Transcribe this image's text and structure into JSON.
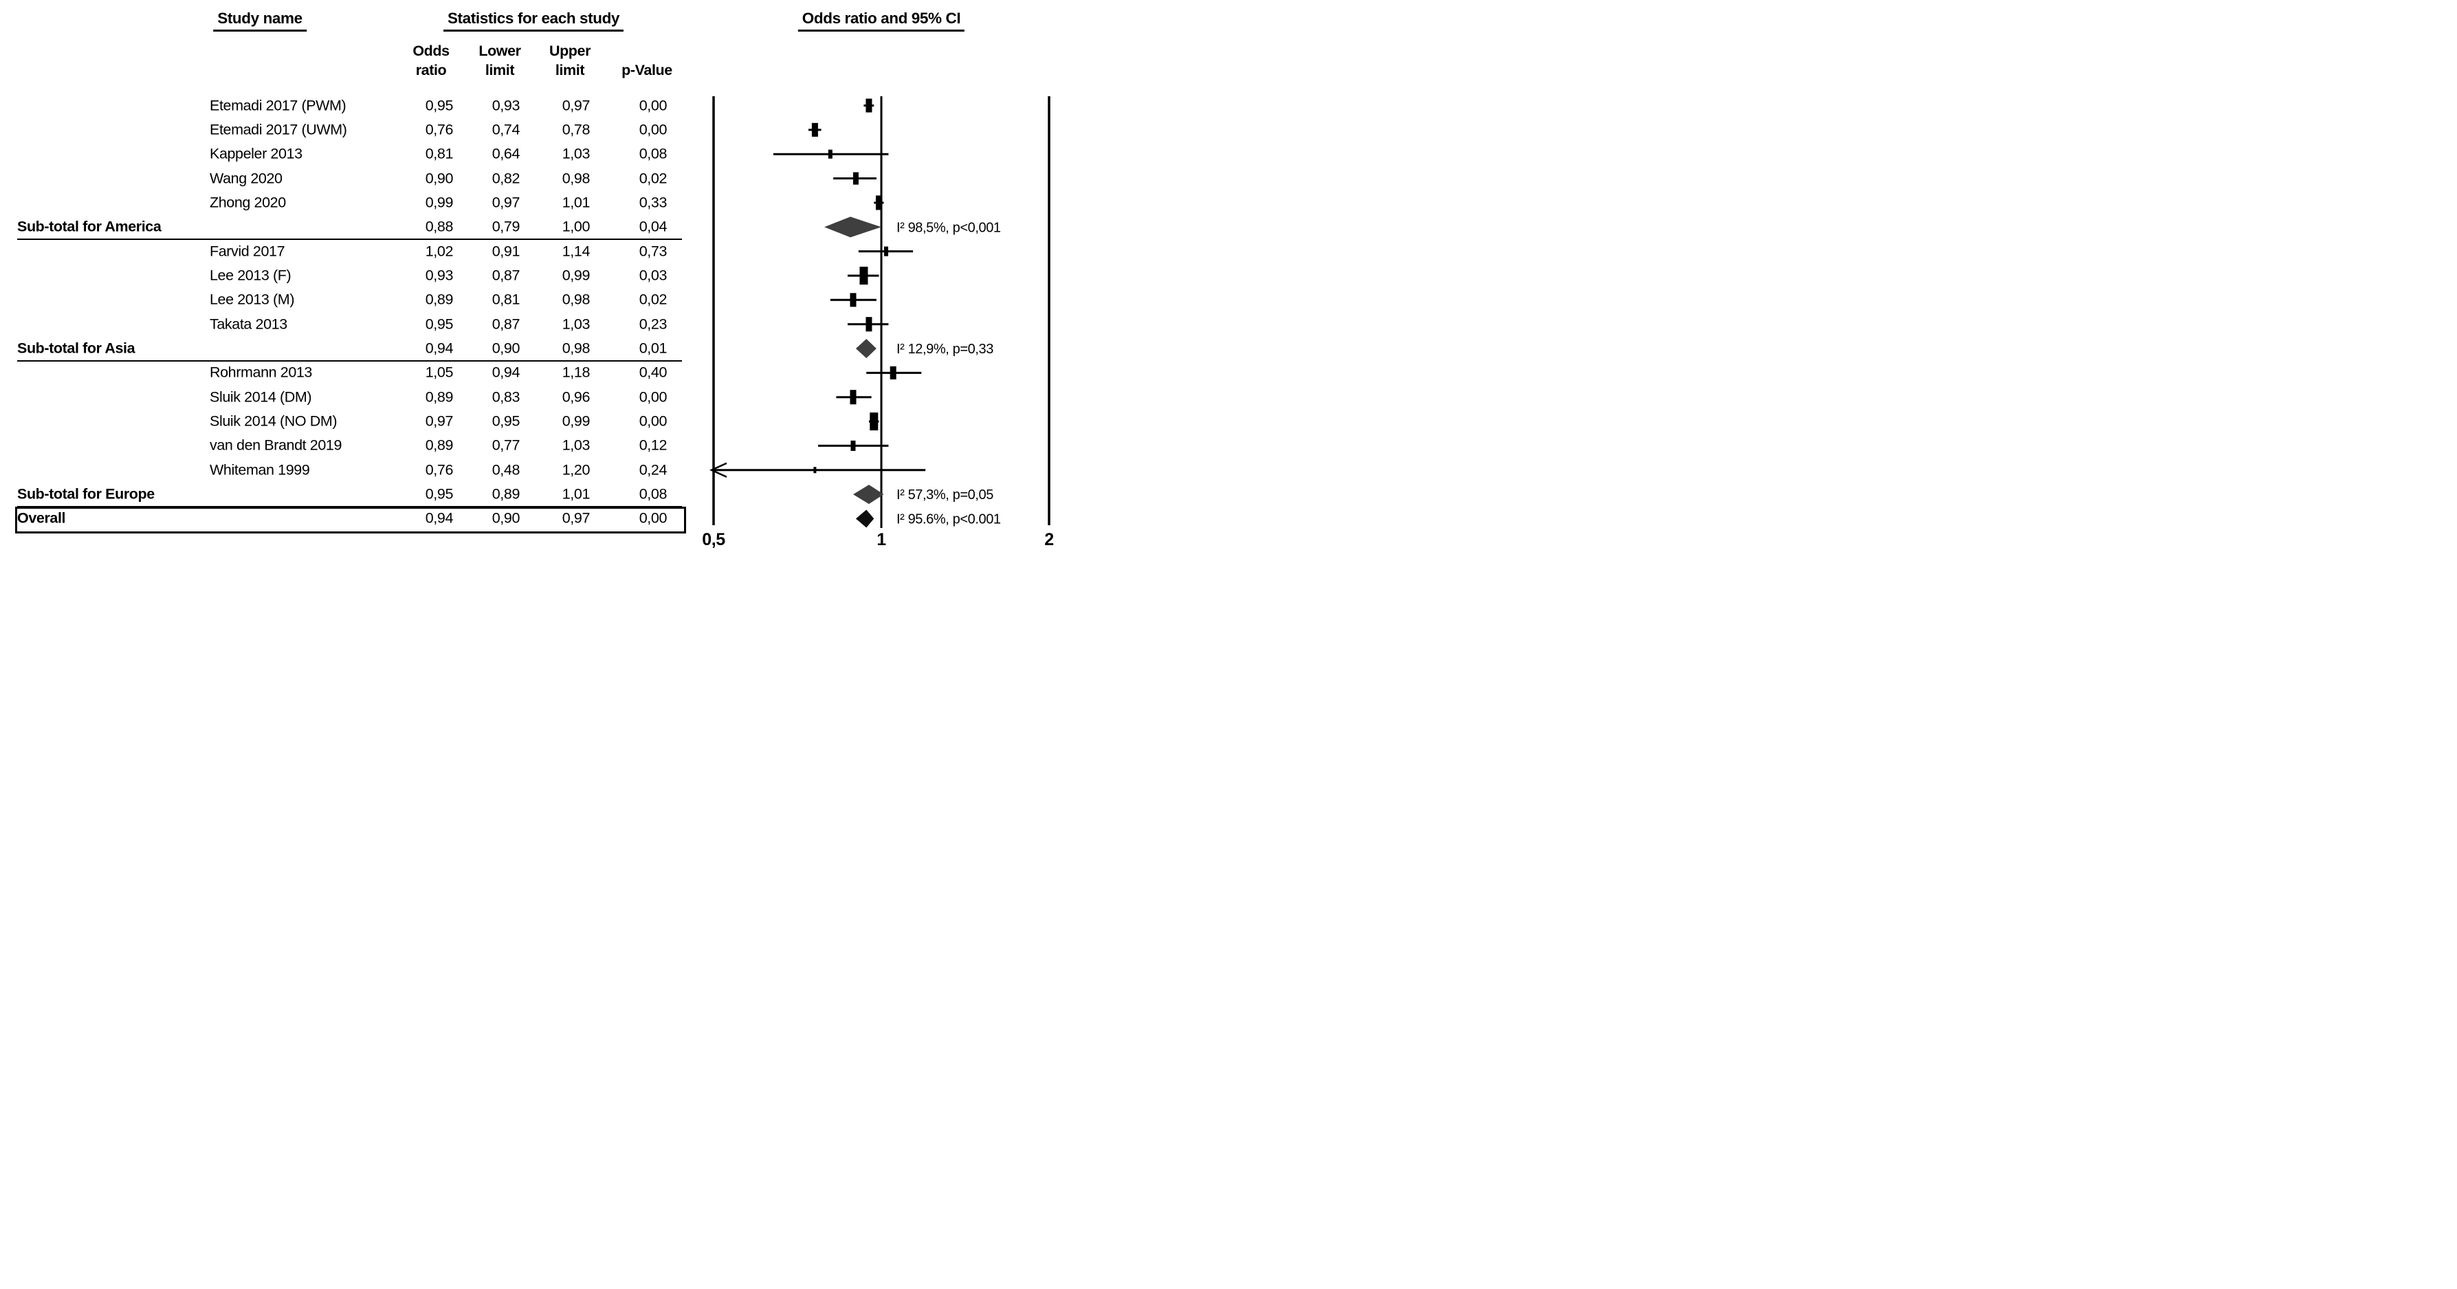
{
  "header": {
    "study_col": "Study name",
    "stats_col": "Statistics for each study",
    "plot_col": "Odds ratio and 95% CI",
    "sub_cols": [
      {
        "top": "Odds",
        "bottom": "ratio"
      },
      {
        "top": "Lower",
        "bottom": "limit"
      },
      {
        "top": "Upper",
        "bottom": "limit"
      },
      {
        "top": "",
        "bottom": "p-Value"
      }
    ]
  },
  "colors": {
    "text": "#000000",
    "marker": "#000000",
    "line": "#000000",
    "diamond_subtotal": "#3f3f3f",
    "diamond_overall": "#0e0e0e"
  },
  "chart_data": {
    "type": "forest",
    "title": "Odds ratio and 95% CI",
    "x_axis": {
      "scale": "log2",
      "range": [
        0.5,
        2
      ],
      "ticks": [
        {
          "value": 0.5,
          "label": "0,5"
        },
        {
          "value": 1,
          "label": "1"
        },
        {
          "value": 2,
          "label": "2"
        }
      ]
    },
    "decimal_separator": ",",
    "rows": [
      {
        "kind": "study",
        "label": "Etemadi 2017 (PWM)",
        "or": 0.95,
        "lower": 0.93,
        "upper": 0.97,
        "p": 0.0,
        "marker_h": 20
      },
      {
        "kind": "study",
        "label": "Etemadi 2017 (UWM)",
        "or": 0.76,
        "lower": 0.74,
        "upper": 0.78,
        "p": 0.0,
        "marker_h": 20
      },
      {
        "kind": "study",
        "label": "Kappeler 2013",
        "or": 0.81,
        "lower": 0.64,
        "upper": 1.03,
        "p": 0.08,
        "marker_h": 13
      },
      {
        "kind": "study",
        "label": "Wang 2020",
        "or": 0.9,
        "lower": 0.82,
        "upper": 0.98,
        "p": 0.02,
        "marker_h": 18
      },
      {
        "kind": "study",
        "label": "Zhong 2020",
        "or": 0.99,
        "lower": 0.97,
        "upper": 1.01,
        "p": 0.33,
        "marker_h": 21
      },
      {
        "kind": "subtotal",
        "label": "Sub-total for America",
        "or": 0.88,
        "lower": 0.79,
        "upper": 1.0,
        "p": 0.04,
        "diamond_h": 30,
        "annotation": "I² 98,5%, p<0,001"
      },
      {
        "kind": "study",
        "label": "Farvid 2017",
        "or": 1.02,
        "lower": 0.91,
        "upper": 1.14,
        "p": 0.73,
        "marker_h": 14
      },
      {
        "kind": "study",
        "label": "Lee 2013 (F)",
        "or": 0.93,
        "lower": 0.87,
        "upper": 0.99,
        "p": 0.03,
        "marker_h": 26
      },
      {
        "kind": "study",
        "label": "Lee 2013 (M)",
        "or": 0.89,
        "lower": 0.81,
        "upper": 0.98,
        "p": 0.02,
        "marker_h": 20
      },
      {
        "kind": "study",
        "label": "Takata 2013",
        "or": 0.95,
        "lower": 0.87,
        "upper": 1.03,
        "p": 0.23,
        "marker_h": 21
      },
      {
        "kind": "subtotal",
        "label": "Sub-total for Asia",
        "or": 0.94,
        "lower": 0.9,
        "upper": 0.98,
        "p": 0.01,
        "diamond_h": 28,
        "annotation": "I² 12,9%, p=0,33"
      },
      {
        "kind": "study",
        "label": "Rohrmann 2013",
        "or": 1.05,
        "lower": 0.94,
        "upper": 1.18,
        "p": 0.4,
        "marker_h": 19
      },
      {
        "kind": "study",
        "label": "Sluik 2014 (DM)",
        "or": 0.89,
        "lower": 0.83,
        "upper": 0.96,
        "p": 0.0,
        "marker_h": 21
      },
      {
        "kind": "study",
        "label": "Sluik 2014 (NO DM)",
        "or": 0.97,
        "lower": 0.95,
        "upper": 0.99,
        "p": 0.0,
        "marker_h": 26
      },
      {
        "kind": "study",
        "label": "van den Brandt 2019",
        "or": 0.89,
        "lower": 0.77,
        "upper": 1.03,
        "p": 0.12,
        "marker_h": 15
      },
      {
        "kind": "study",
        "label": "Whiteman 1999",
        "or": 0.76,
        "lower": 0.48,
        "upper": 1.2,
        "p": 0.24,
        "marker_h": 9
      },
      {
        "kind": "subtotal",
        "label": "Sub-total for Europe",
        "or": 0.95,
        "lower": 0.89,
        "upper": 1.01,
        "p": 0.08,
        "diamond_h": 28,
        "annotation": "I² 57,3%, p=0,05"
      },
      {
        "kind": "overall",
        "label": "Overall",
        "or": 0.94,
        "lower": 0.9,
        "upper": 0.97,
        "p": 0.0,
        "diamond_h": 26,
        "annotation": "I² 95.6%, p<0.001"
      }
    ]
  }
}
